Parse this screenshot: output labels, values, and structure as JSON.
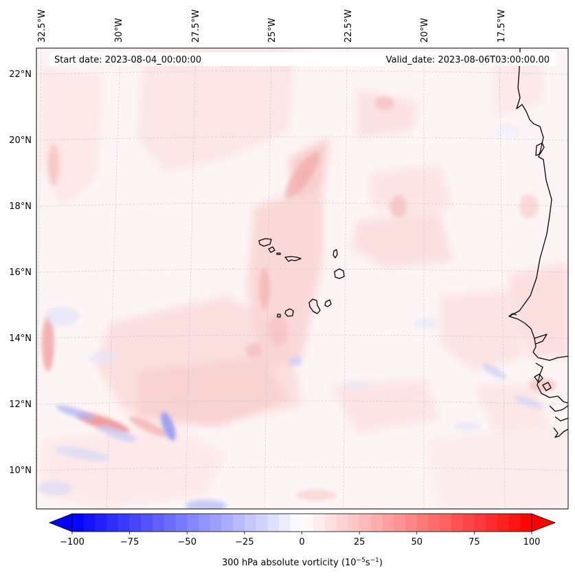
{
  "map": {
    "header": {
      "start_date": "Start date: 2023-08-04_00:00:00",
      "valid_date": "Valid_date: 2023-08-06T03:00:00.00"
    },
    "longitude_labels": [
      "32.5°W",
      "30°W",
      "27.5°W",
      "25°W",
      "22.5°W",
      "20°W",
      "17.5°W"
    ],
    "latitude_labels": [
      "22°N",
      "20°N",
      "18°N",
      "16°N",
      "14°N",
      "12°N",
      "10°N"
    ],
    "colorbar": {
      "ticks": [
        "−100",
        "−75",
        "−50",
        "−25",
        "0",
        "25",
        "50",
        "75",
        "100"
      ],
      "label_text": "300 hPa absolute vorticity (10",
      "label_exp1": "−5",
      "label_mid": "s",
      "label_exp2": "−1",
      "label_close": ")",
      "range": [
        -100,
        100
      ],
      "levels": 41,
      "colormap": "bwr",
      "extend": "both"
    },
    "colors": {
      "coastline": "#000000",
      "gridline": "#c8c8c8",
      "negative": "#0000ff",
      "positive": "#ff0000"
    }
  }
}
